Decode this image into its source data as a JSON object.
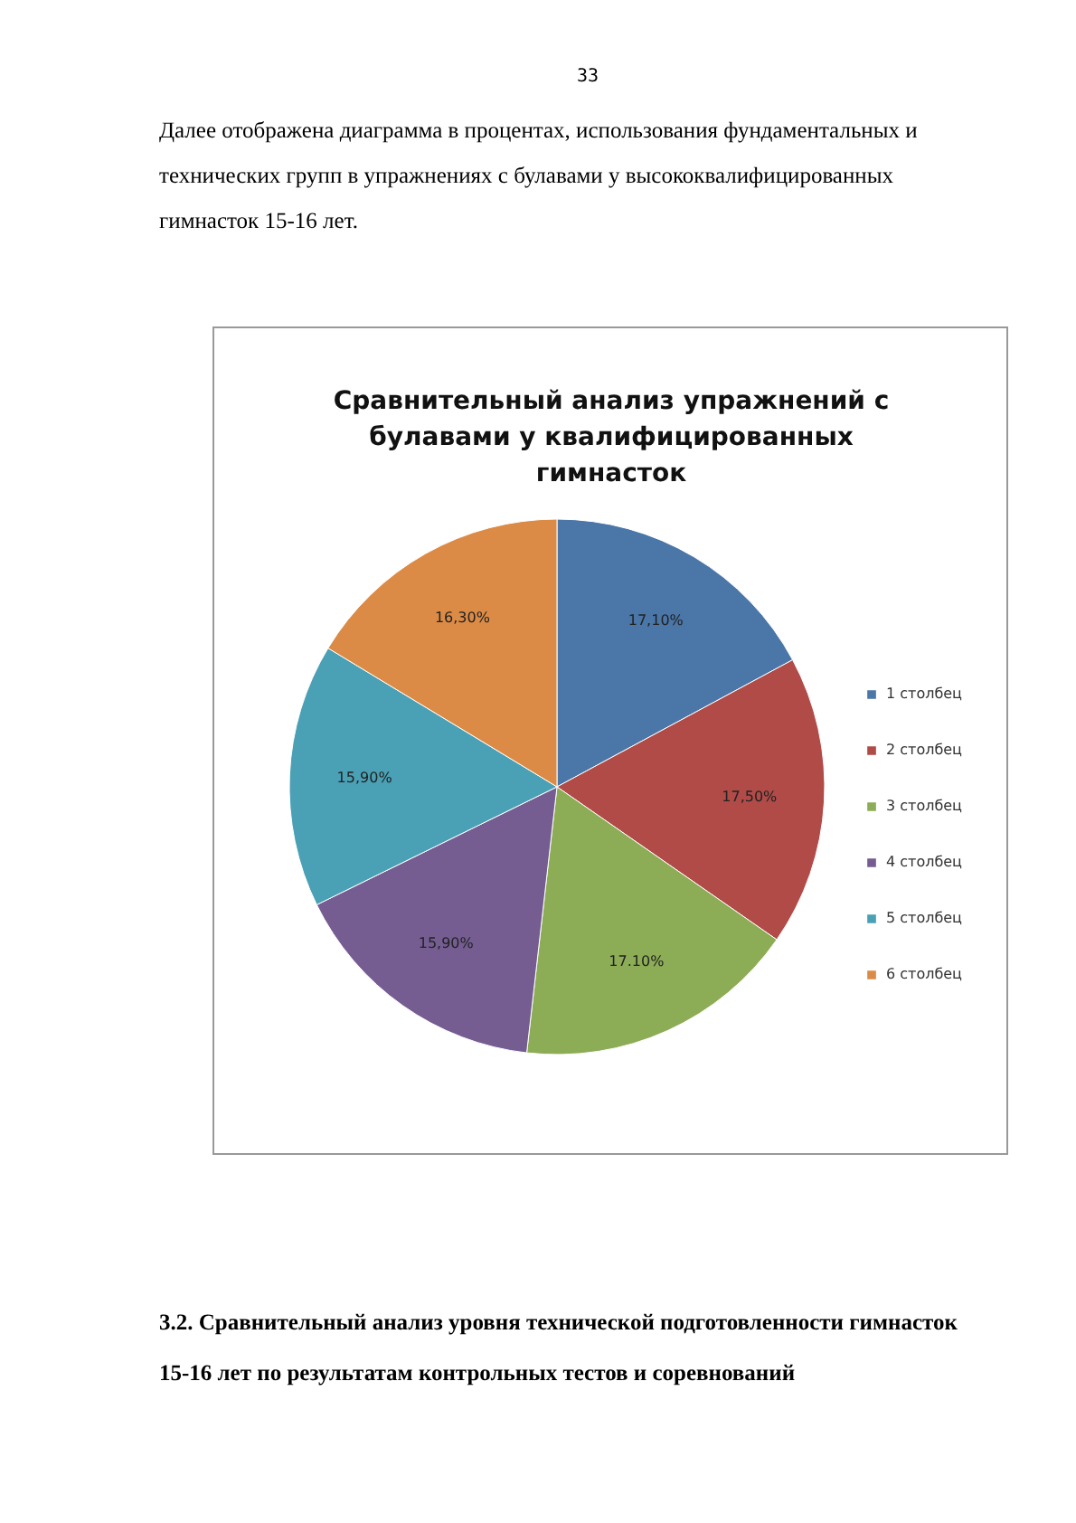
{
  "chart_data": {
    "type": "pie",
    "title": "Сравнительный анализ упражнений с булавами у квалифицированных гимнасток",
    "categories": [
      "1 столбец",
      "2 столбец",
      "3 столбец",
      "4 столбец",
      "5 столбец",
      "6 столбец"
    ],
    "values": [
      17.1,
      17.5,
      17.1,
      15.9,
      15.9,
      16.3
    ],
    "value_labels": [
      "17,10%",
      "17,50%",
      "17.10%",
      "15,90%",
      "15,90%",
      "16,30%"
    ],
    "colors": [
      "#4a76a8",
      "#b04b48",
      "#8cac55",
      "#755d92",
      "#4aa0b5",
      "#db8b46"
    ],
    "legend": "right",
    "annotations": [
      "33",
      "Далее отображена диаграмма в процентах, использования фундаментальных и технических групп в упражнениях с булавами у высококвалифицированных гимнасток 15-16 лет.",
      "3.2. Сравнительный анализ уровня технической подготовленности гимнасток 15-16 лет по результатам контрольных тестов и соревнований"
    ]
  }
}
